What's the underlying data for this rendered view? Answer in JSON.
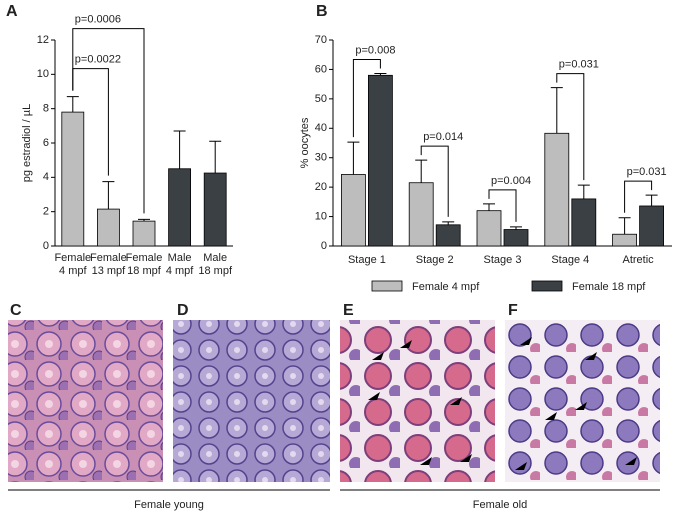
{
  "chart_data": [
    {
      "type": "bar",
      "panel": "A",
      "ylabel": "pg estradiol / µL",
      "categories": [
        [
          "Female",
          "4 mpf"
        ],
        [
          "Female",
          "13 mpf"
        ],
        [
          "Female",
          "18 mpf"
        ],
        [
          "Male",
          "4 mpf"
        ],
        [
          "Male",
          "18 mpf"
        ]
      ],
      "values": [
        7.8,
        2.15,
        1.45,
        4.5,
        4.25
      ],
      "errors": [
        0.9,
        1.6,
        0.1,
        2.2,
        1.85
      ],
      "colors": [
        "#bdbdbd",
        "#bdbdbd",
        "#bdbdbd",
        "#3b4045",
        "#3b4045"
      ],
      "ylim": [
        0,
        12
      ],
      "yticks": [
        0,
        2,
        4,
        6,
        8,
        10,
        12
      ],
      "comparisons": [
        {
          "label": "p=0.0022",
          "between": [
            0,
            1
          ]
        },
        {
          "label": "p=0.0006",
          "between": [
            0,
            2
          ]
        }
      ]
    },
    {
      "type": "grouped-bar",
      "panel": "B",
      "ylabel": "% oocytes",
      "categories": [
        "Stage 1",
        "Stage 2",
        "Stage 3",
        "Stage 4",
        "Atretic"
      ],
      "series": [
        {
          "name": "Female 4 mpf",
          "color": "#bdbdbd",
          "values": [
            24.3,
            21.5,
            12,
            38.3,
            4
          ],
          "errors": [
            11,
            7.7,
            2.3,
            15.5,
            5.6
          ]
        },
        {
          "name": "Female 18 mpf",
          "color": "#3b4045",
          "values": [
            58,
            7.2,
            5.6,
            16,
            13.6
          ],
          "errors": [
            0.6,
            1,
            0.9,
            4.7,
            3.7
          ]
        }
      ],
      "ylim": [
        0,
        70
      ],
      "yticks": [
        0,
        10,
        20,
        30,
        40,
        50,
        60,
        70
      ],
      "pvalues": [
        "p=0.008",
        "p=0.014",
        "p=0.004",
        "p=0.031",
        "p=0.031"
      ]
    }
  ],
  "panels": [
    "C",
    "D",
    "E",
    "F"
  ],
  "groups": [
    "Female young",
    "Female old"
  ]
}
